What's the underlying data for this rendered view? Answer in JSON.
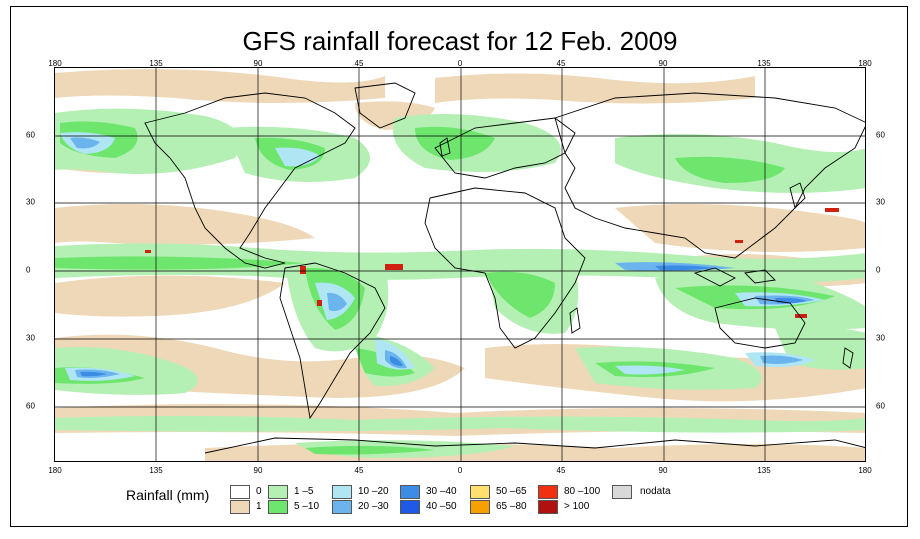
{
  "title": "GFS rainfall forecast for 12 Feb. 2009",
  "lon_labels": [
    "180",
    "135",
    "90",
    "45",
    "0",
    "45",
    "90",
    "135",
    "180"
  ],
  "lat_labels": [
    "60",
    "30",
    "0",
    "30",
    "60"
  ],
  "legend": {
    "title": "Rainfall (mm)",
    "items": [
      {
        "label": "0",
        "color": "#ffffff"
      },
      {
        "label": "1",
        "color": "#efd8b8"
      },
      {
        "label": "1 –5",
        "color": "#b4f0b4"
      },
      {
        "label": "5 –10",
        "color": "#6ee66e"
      },
      {
        "label": "10 –20",
        "color": "#b0e6f4"
      },
      {
        "label": "20 –30",
        "color": "#6cb4ee"
      },
      {
        "label": "30 –40",
        "color": "#3c8ce6"
      },
      {
        "label": "40 –50",
        "color": "#1e5ae6"
      },
      {
        "label": "50 –65",
        "color": "#fde070"
      },
      {
        "label": "65 –80",
        "color": "#f7a000"
      },
      {
        "label": "80 –100",
        "color": "#f03010"
      },
      {
        "label": "> 100",
        "color": "#b01010"
      },
      {
        "label": "nodata",
        "color": "#d8d8d8"
      }
    ]
  }
}
